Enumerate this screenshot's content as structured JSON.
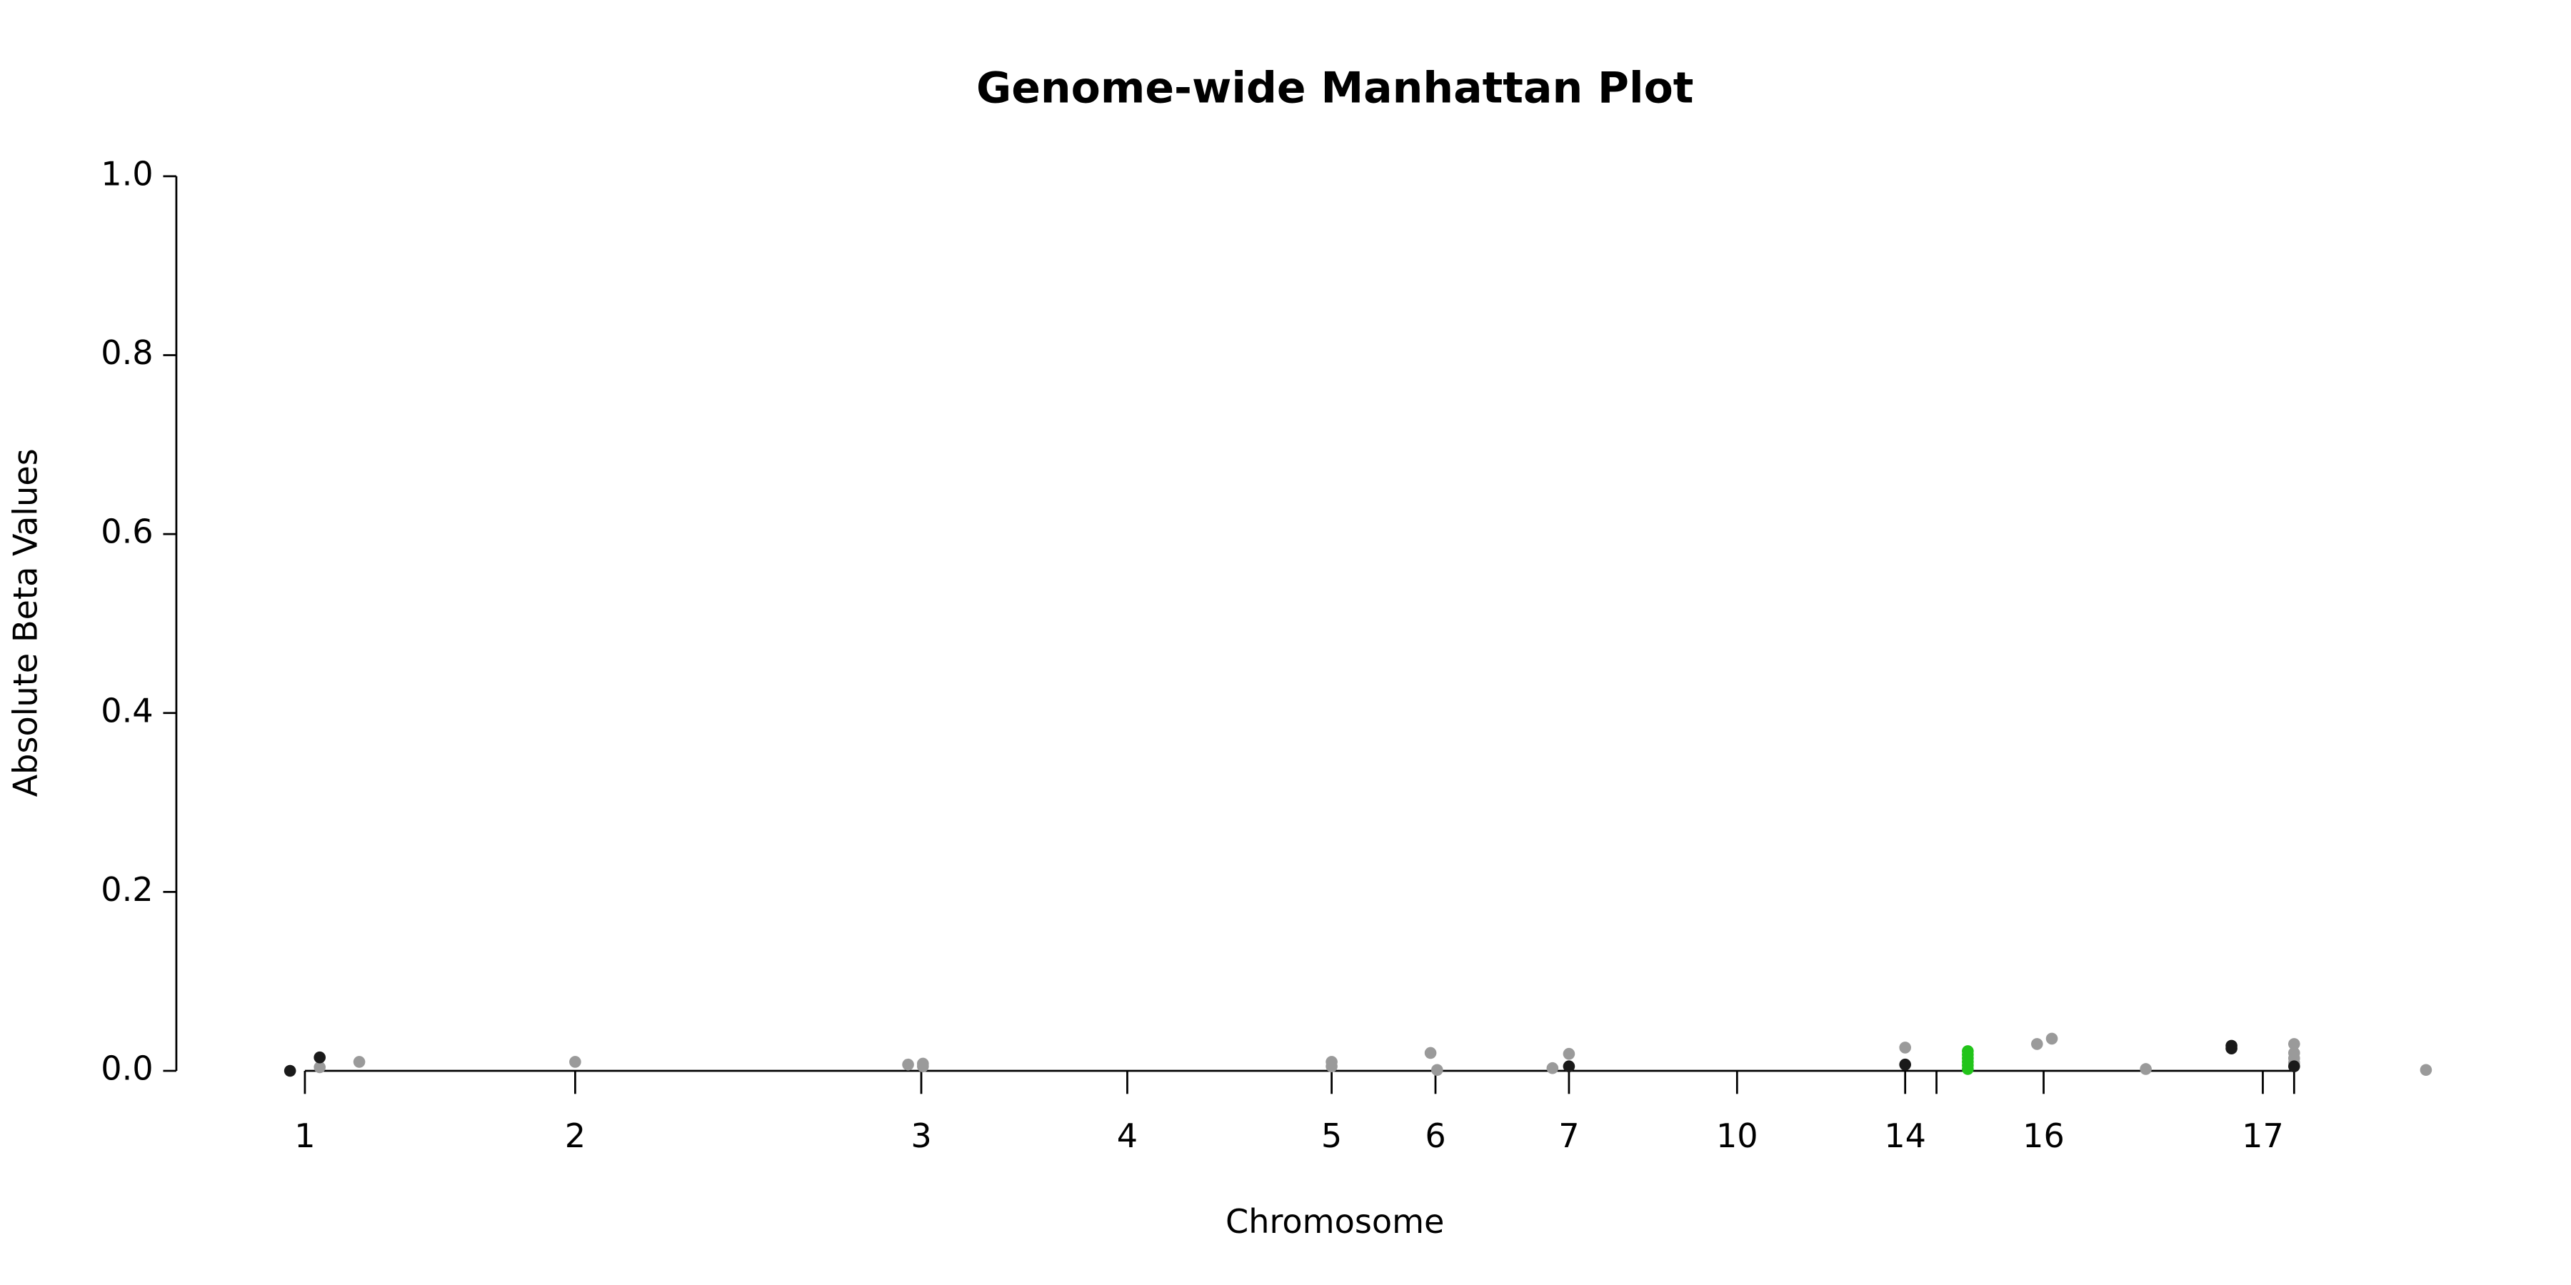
{
  "chart_data": {
    "type": "scatter",
    "title": "Genome-wide Manhattan Plot",
    "x_label": "Chromosome",
    "y_label": "Absolute Beta Values",
    "xlim": [
      100,
      1480
    ],
    "ylim": [
      0,
      1
    ],
    "xticks": [
      {
        "value": 185,
        "label": "1"
      },
      {
        "value": 349,
        "label": "2"
      },
      {
        "value": 559,
        "label": "3"
      },
      {
        "value": 684,
        "label": "4"
      },
      {
        "value": 808,
        "label": "5"
      },
      {
        "value": 871,
        "label": "6"
      },
      {
        "value": 952,
        "label": "7"
      },
      {
        "value": 1054,
        "label": "10"
      },
      {
        "value": 1156,
        "label": "14"
      },
      {
        "value": 1175,
        "label": null
      },
      {
        "value": 1240,
        "label": "16"
      },
      {
        "value": 1373,
        "label": "17"
      },
      {
        "value": 1392,
        "label": null
      }
    ],
    "yticks": [
      {
        "value": 0,
        "label": "0.0"
      },
      0.2,
      0.4,
      0.6,
      0.8,
      {
        "value": 1,
        "label": "1.0"
      }
    ],
    "series": [
      {
        "color": "#9a9a9a",
        "x": [
          194,
          218,
          349,
          551,
          560,
          560,
          808,
          808,
          868,
          872,
          942,
          952,
          1156,
          1236,
          1245,
          1302,
          1392,
          1392,
          1392,
          1392,
          1472
        ],
        "values": [
          0.004,
          0.01,
          0.01,
          0.007,
          0.008,
          0.005,
          0.01,
          0.005,
          0.02,
          0.001,
          0.003,
          0.019,
          0.026,
          0.03,
          0.036,
          0.002,
          0.03,
          0.02,
          0.014,
          0.009,
          0.001
        ]
      },
      {
        "color": "#1a1a1a",
        "x": [
          176,
          194,
          952,
          1156,
          1354,
          1354,
          1392
        ],
        "values": [
          0.0,
          0.015,
          0.005,
          0.007,
          0.028,
          0.025,
          0.005
        ]
      },
      {
        "color": "#22c41a",
        "x": [
          1194,
          1194,
          1194,
          1194,
          1194,
          1194
        ],
        "values": [
          0.022,
          0.018,
          0.014,
          0.01,
          0.006,
          0.002
        ]
      }
    ]
  }
}
